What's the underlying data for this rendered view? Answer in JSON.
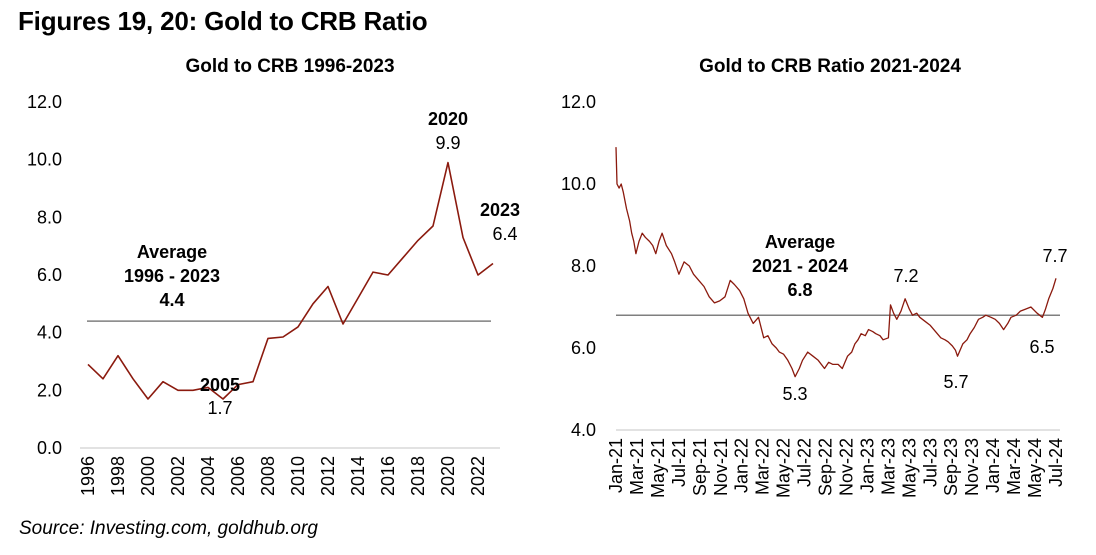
{
  "figure_title": "Figures 19, 20: Gold to CRB Ratio",
  "source": "Source: Investing.com, goldhub.org",
  "colors": {
    "line": "#8B1A0E",
    "average_line": "#7f7f7f",
    "axis": "#d9d9d9"
  },
  "chart_data": [
    {
      "type": "line",
      "title": "Gold to CRB 1996-2023",
      "xlabel": "",
      "ylabel": "",
      "ylim": [
        0,
        12
      ],
      "yticks": [
        "0.0",
        "2.0",
        "4.0",
        "6.0",
        "8.0",
        "10.0",
        "12.0"
      ],
      "ytick_values": [
        0,
        2,
        4,
        6,
        8,
        10,
        12
      ],
      "xticks": [
        "1996",
        "1998",
        "2000",
        "2002",
        "2004",
        "2006",
        "2008",
        "2010",
        "2012",
        "2014",
        "2016",
        "2018",
        "2020",
        "2022"
      ],
      "grid": false,
      "x": [
        1996,
        1997,
        1998,
        1999,
        2000,
        2001,
        2002,
        2003,
        2004,
        2005,
        2006,
        2007,
        2008,
        2009,
        2010,
        2011,
        2012,
        2013,
        2014,
        2015,
        2016,
        2017,
        2018,
        2019,
        2020,
        2021,
        2022,
        2023
      ],
      "series": [
        {
          "name": "Gold to CRB Ratio",
          "values": [
            2.9,
            2.4,
            3.2,
            2.4,
            1.7,
            2.3,
            2.0,
            2.0,
            2.1,
            1.7,
            2.2,
            2.3,
            3.8,
            3.85,
            4.2,
            5.0,
            5.6,
            4.3,
            5.2,
            6.1,
            6.0,
            6.6,
            7.2,
            7.7,
            9.9,
            7.3,
            6.0,
            6.4
          ]
        }
      ],
      "average": {
        "value": 4.4,
        "label_lines": [
          "Average",
          "1996 - 2023",
          "4.4"
        ]
      },
      "annotations": [
        {
          "bold": "2020",
          "text": "9.9"
        },
        {
          "bold": "2023",
          "text": "6.4"
        },
        {
          "bold": "2005",
          "text": "1.7"
        }
      ]
    },
    {
      "type": "line",
      "title": "Gold to CRB Ratio 2021-2024",
      "xlabel": "",
      "ylabel": "",
      "ylim": [
        4,
        12
      ],
      "yticks": [
        "4.0",
        "6.0",
        "8.0",
        "10.0",
        "12.0"
      ],
      "ytick_values": [
        4,
        6,
        8,
        10,
        12
      ],
      "xticks": [
        "Jan-21",
        "Mar-21",
        "May-21",
        "Jul-21",
        "Sep-21",
        "Nov-21",
        "Jan-22",
        "Mar-22",
        "May-22",
        "Jul-22",
        "Sep-22",
        "Nov-22",
        "Jan-23",
        "Mar-23",
        "May-23",
        "Jul-23",
        "Sep-23",
        "Nov-23",
        "Jan-24",
        "Mar-24",
        "May-24",
        "Jul-24"
      ],
      "grid": false,
      "x_unit": "months since Jan-21",
      "x": [
        0,
        0.1,
        0.3,
        0.5,
        0.7,
        1.0,
        1.3,
        1.5,
        1.7,
        1.9,
        2.2,
        2.5,
        2.8,
        3.2,
        3.5,
        3.8,
        4.1,
        4.4,
        4.8,
        5.3,
        5.6,
        6.0,
        6.5,
        7.0,
        7.4,
        7.9,
        8.4,
        8.9,
        9.4,
        9.9,
        10.4,
        10.9,
        11.3,
        11.8,
        12.2,
        12.6,
        13.1,
        13.6,
        14.1,
        14.5,
        14.9,
        15.3,
        15.6,
        16.0,
        16.4,
        16.8,
        17.1,
        17.5,
        17.8,
        18.3,
        18.8,
        19.3,
        19.9,
        20.3,
        20.7,
        21.2,
        21.6,
        22.1,
        22.5,
        22.8,
        23.1,
        23.4,
        23.8,
        24.1,
        24.5,
        24.8,
        25.2,
        25.5,
        26.0,
        26.2,
        26.5,
        26.8,
        27.2,
        27.6,
        28.0,
        28.3,
        28.7,
        29.0,
        29.5,
        30.0,
        30.5,
        31.0,
        31.4,
        31.7,
        32.1,
        32.4,
        32.6,
        33.1,
        33.5,
        33.8,
        34.2,
        34.6,
        35.0,
        35.3,
        35.8,
        36.2,
        36.6,
        37.0,
        37.4,
        37.7,
        38.2,
        38.6,
        39.1,
        39.6,
        40.2,
        40.7,
        41.0,
        41.3,
        41.7,
        42.0
      ],
      "series": [
        {
          "name": "Gold to CRB Ratio",
          "values": [
            10.9,
            10.0,
            9.9,
            10.0,
            9.8,
            9.4,
            9.1,
            8.8,
            8.6,
            8.3,
            8.6,
            8.8,
            8.7,
            8.6,
            8.5,
            8.3,
            8.6,
            8.8,
            8.5,
            8.3,
            8.1,
            7.8,
            8.1,
            8.0,
            7.8,
            7.65,
            7.5,
            7.25,
            7.1,
            7.15,
            7.25,
            7.65,
            7.55,
            7.4,
            7.2,
            6.85,
            6.6,
            6.75,
            6.25,
            6.3,
            6.1,
            6.0,
            5.9,
            5.85,
            5.7,
            5.5,
            5.3,
            5.5,
            5.7,
            5.9,
            5.8,
            5.7,
            5.5,
            5.65,
            5.6,
            5.6,
            5.5,
            5.8,
            5.9,
            6.1,
            6.2,
            6.35,
            6.3,
            6.45,
            6.4,
            6.35,
            6.3,
            6.2,
            6.25,
            7.05,
            6.85,
            6.7,
            6.9,
            7.2,
            6.95,
            6.8,
            6.85,
            6.75,
            6.65,
            6.55,
            6.4,
            6.25,
            6.2,
            6.15,
            6.05,
            5.95,
            5.8,
            6.1,
            6.2,
            6.35,
            6.5,
            6.7,
            6.75,
            6.8,
            6.75,
            6.7,
            6.6,
            6.45,
            6.6,
            6.75,
            6.8,
            6.9,
            6.95,
            7.0,
            6.85,
            6.75,
            6.95,
            7.2,
            7.45,
            7.7
          ]
        }
      ],
      "average": {
        "value": 6.8,
        "label_lines": [
          "Average",
          "2021 - 2024",
          "6.8"
        ]
      },
      "annotations": [
        {
          "text": "5.3"
        },
        {
          "text": "7.2"
        },
        {
          "text": "5.7"
        },
        {
          "text": "6.5"
        },
        {
          "text": "7.7"
        }
      ]
    }
  ]
}
